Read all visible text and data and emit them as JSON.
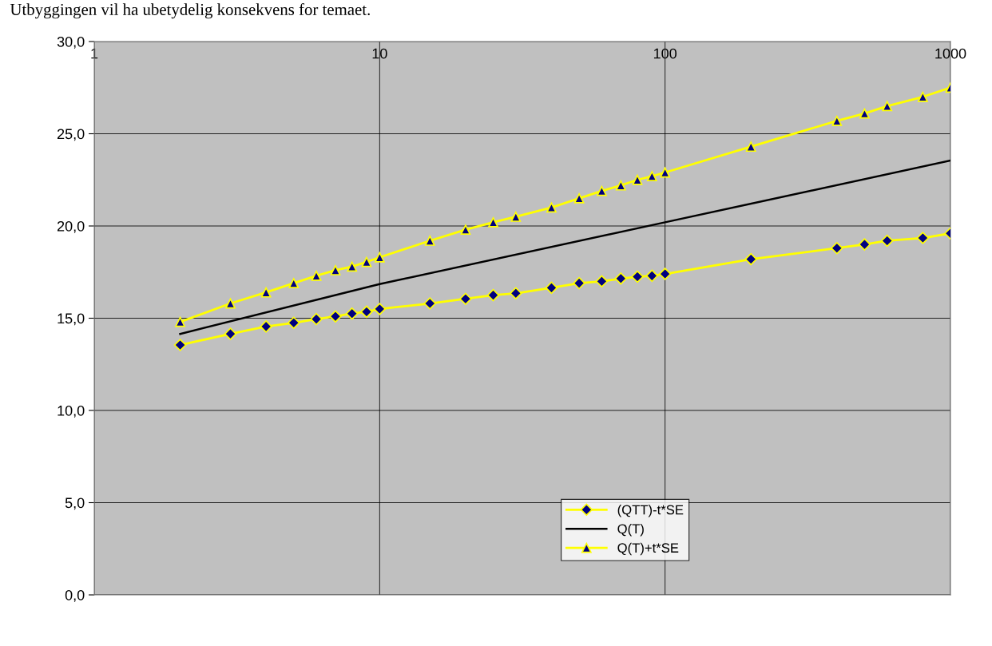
{
  "chart_data": {
    "type": "line",
    "annotations": [
      "Utbyggingen vil ha ubetydelig konsekvens for temaet."
    ],
    "xlim": [
      1,
      1000
    ],
    "xticks": [
      1,
      10,
      100,
      1000
    ],
    "log": "x",
    "ylim": [
      0,
      30
    ],
    "yticks": [
      {
        "value": 0,
        "label": "0,0"
      },
      {
        "value": 5,
        "label": "5,0"
      },
      {
        "value": 10,
        "label": "10,0"
      },
      {
        "value": 15,
        "label": "15,0"
      },
      {
        "value": 20,
        "label": "20,0"
      },
      {
        "value": 25,
        "label": "25,0"
      },
      {
        "value": 30,
        "label": "30,0"
      }
    ],
    "grid": true,
    "legend": "bottom",
    "series": [
      {
        "name": "(QTT)-t*SE",
        "color": "#ffff00",
        "marker": "diamond",
        "x": [
          2,
          3,
          4,
          5,
          6,
          7,
          8,
          9,
          10,
          15,
          20,
          25,
          30,
          40,
          50,
          60,
          70,
          80,
          90,
          100,
          200,
          400,
          500,
          600,
          800,
          1000
        ],
        "values": [
          13.55,
          14.15,
          14.55,
          14.75,
          14.95,
          15.1,
          15.25,
          15.35,
          15.5,
          15.8,
          16.05,
          16.25,
          16.35,
          16.65,
          16.9,
          17.0,
          17.15,
          17.25,
          17.3,
          17.4,
          18.2,
          18.8,
          19.0,
          19.2,
          19.35,
          19.6
        ]
      },
      {
        "name": "Q(T)",
        "color": "#000000",
        "marker": "none",
        "x": [
          2,
          10,
          100,
          1000
        ],
        "values": [
          14.15,
          16.85,
          20.2,
          23.55
        ]
      },
      {
        "name": "Q(T)+t*SE",
        "color": "#ffff00",
        "marker": "triangle",
        "x": [
          2,
          3,
          4,
          5,
          6,
          7,
          8,
          9,
          10,
          15,
          20,
          25,
          30,
          40,
          50,
          60,
          70,
          80,
          90,
          100,
          200,
          400,
          500,
          600,
          800,
          1000
        ],
        "values": [
          14.8,
          15.8,
          16.4,
          16.9,
          17.3,
          17.6,
          17.8,
          18.05,
          18.3,
          19.2,
          19.8,
          20.2,
          20.5,
          21.0,
          21.5,
          21.9,
          22.2,
          22.5,
          22.7,
          22.9,
          24.3,
          25.7,
          26.1,
          26.5,
          27.0,
          27.5
        ]
      }
    ]
  }
}
